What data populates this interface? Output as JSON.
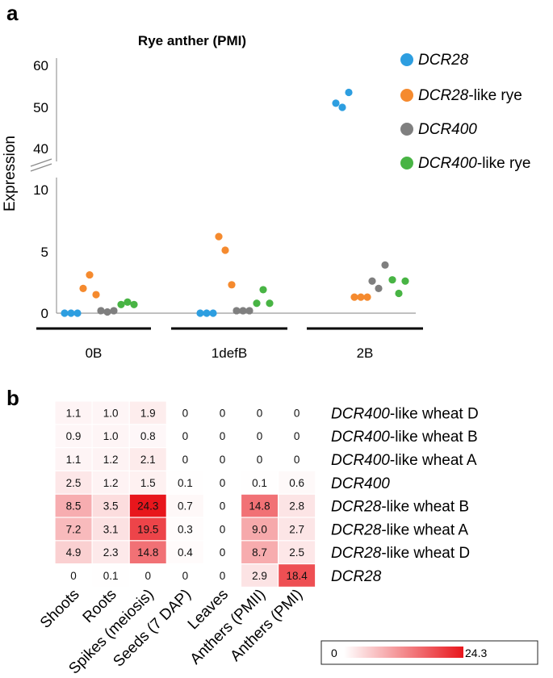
{
  "chart_data": [
    {
      "panel_label": "a",
      "type": "scatter",
      "title": "Rye anther (PMI)",
      "ylabel": "Expression",
      "xlabel": "",
      "categories": [
        "0B",
        "1defB",
        "2B"
      ],
      "y_axis_lower": {
        "range": [
          0,
          12
        ],
        "ticks": [
          "0",
          "5",
          "10"
        ]
      },
      "y_axis_upper": {
        "range": [
          37,
          62
        ],
        "ticks": [
          "40",
          "50",
          "60"
        ]
      },
      "axis_break": true,
      "legend_position": "right",
      "series": [
        {
          "name": "DCR28",
          "name_italic": "DCR28",
          "name_suffix": "",
          "color": "#2d9ee0",
          "points": [
            [
              0,
              0.0
            ],
            [
              0,
              0.0
            ],
            [
              0,
              0.0
            ],
            [
              1,
              0.0
            ],
            [
              1,
              0.0
            ],
            [
              1,
              0.0
            ],
            [
              2,
              50.9
            ],
            [
              2,
              49.9
            ],
            [
              2,
              53.5
            ]
          ]
        },
        {
          "name": "DCR28-like rye",
          "name_italic": "DCR28",
          "name_suffix": "-like rye",
          "color": "#f58a2e",
          "points": [
            [
              0,
              2.0
            ],
            [
              0,
              3.1
            ],
            [
              0,
              1.5
            ],
            [
              1,
              6.2
            ],
            [
              1,
              5.1
            ],
            [
              1,
              2.3
            ],
            [
              2,
              1.3
            ],
            [
              2,
              1.3
            ],
            [
              2,
              1.3
            ]
          ]
        },
        {
          "name": "DCR400",
          "name_italic": "DCR400",
          "name_suffix": "",
          "color": "#7f7f7f",
          "points": [
            [
              0,
              0.2
            ],
            [
              0,
              0.1
            ],
            [
              0,
              0.2
            ],
            [
              1,
              0.2
            ],
            [
              1,
              0.2
            ],
            [
              1,
              0.2
            ],
            [
              2,
              2.6
            ],
            [
              2,
              2.0
            ],
            [
              2,
              3.9
            ]
          ]
        },
        {
          "name": "DCR400-like rye",
          "name_italic": "DCR400",
          "name_suffix": "-like rye",
          "color": "#48b444",
          "points": [
            [
              0,
              0.7
            ],
            [
              0,
              0.9
            ],
            [
              0,
              0.7
            ],
            [
              1,
              0.8
            ],
            [
              1,
              1.9
            ],
            [
              1,
              0.8
            ],
            [
              2,
              2.7
            ],
            [
              2,
              1.6
            ],
            [
              2,
              2.6
            ]
          ]
        }
      ]
    },
    {
      "panel_label": "b",
      "type": "heatmap",
      "columns": [
        "Shoots",
        "Roots",
        "Spikes (meiosis)",
        "Seeds (7 DAP)",
        "Leaves",
        "Anthers (PMII)",
        "Anthers (PMI)"
      ],
      "rows": [
        {
          "italic": "DCR400",
          "suffix": "-like wheat D",
          "values": [
            "1.1",
            "1.0",
            "1.9",
            "0",
            "0",
            "0",
            "0"
          ]
        },
        {
          "italic": "DCR400",
          "suffix": "-like wheat B",
          "values": [
            "0.9",
            "1.0",
            "0.8",
            "0",
            "0",
            "0",
            "0"
          ]
        },
        {
          "italic": "DCR400",
          "suffix": "-like wheat A",
          "values": [
            "1.1",
            "1.2",
            "2.1",
            "0",
            "0",
            "0",
            "0"
          ]
        },
        {
          "italic": "DCR400",
          "suffix": "",
          "values": [
            "2.5",
            "1.2",
            "1.5",
            "0.1",
            "0",
            "0.1",
            "0.6"
          ]
        },
        {
          "italic": "DCR28",
          "suffix": "-like wheat B",
          "values": [
            "8.5",
            "3.5",
            "24.3",
            "0.7",
            "0",
            "14.8",
            "2.8"
          ]
        },
        {
          "italic": "DCR28",
          "suffix": "-like wheat A",
          "values": [
            "7.2",
            "3.1",
            "19.5",
            "0.3",
            "0",
            "9.0",
            "2.7"
          ]
        },
        {
          "italic": "DCR28",
          "suffix": "-like wheat D",
          "values": [
            "4.9",
            "2.3",
            "14.8",
            "0.4",
            "0",
            "8.7",
            "2.5"
          ]
        },
        {
          "italic": "DCR28",
          "suffix": "",
          "values": [
            "0",
            "0.1",
            "0",
            "0",
            "0",
            "2.9",
            "18.4"
          ]
        }
      ],
      "color_min": 0,
      "color_max": 24.3,
      "colorbar_labels": {
        "min": "0",
        "max": "24.3"
      },
      "color_low": "#ffffff",
      "color_high": "#e8161c"
    }
  ]
}
